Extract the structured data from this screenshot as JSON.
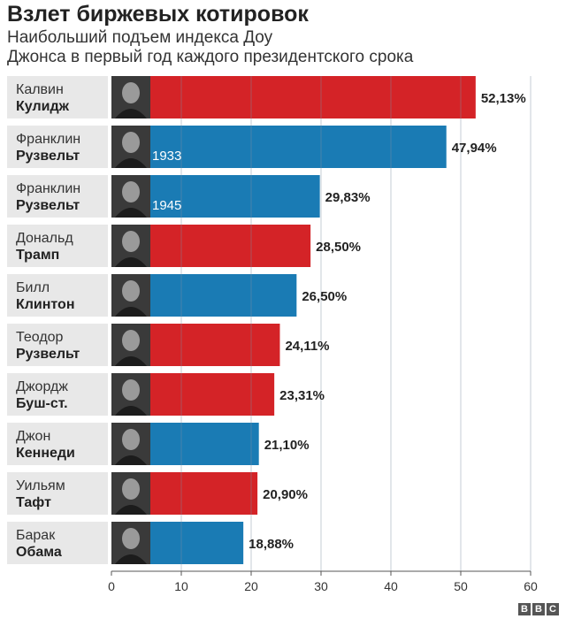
{
  "header": {
    "title": "Взлет биржевых котировок",
    "subtitle_line1": "Наибольший подъем индекса Доу",
    "subtitle_line2": "Джонса в первый год каждого президентского срока"
  },
  "colors": {
    "republican": "#d42327",
    "democrat": "#1a7bb4",
    "label_bg": "#e8e8e8",
    "gridline": "#7f8f9f"
  },
  "chart_data": {
    "type": "bar",
    "orientation": "horizontal",
    "xlim": [
      0,
      60
    ],
    "ticks": [
      0,
      10,
      20,
      30,
      40,
      50,
      60
    ],
    "grid": true,
    "bars": [
      {
        "first": "Калвин",
        "last": "Кулидж",
        "value": 52.13,
        "label": "52,13%",
        "party": "republican",
        "year": ""
      },
      {
        "first": "Франклин",
        "last": "Рузвельт",
        "value": 47.94,
        "label": "47,94%",
        "party": "democrat",
        "year": "1933"
      },
      {
        "first": "Франклин",
        "last": "Рузвельт",
        "value": 29.83,
        "label": "29,83%",
        "party": "democrat",
        "year": "1945"
      },
      {
        "first": "Дональд",
        "last": "Трамп",
        "value": 28.5,
        "label": "28,50%",
        "party": "republican",
        "year": ""
      },
      {
        "first": "Билл",
        "last": "Клинтон",
        "value": 26.5,
        "label": "26,50%",
        "party": "democrat",
        "year": ""
      },
      {
        "first": "Теодор",
        "last": "Рузвельт",
        "value": 24.11,
        "label": "24,11%",
        "party": "republican",
        "year": ""
      },
      {
        "first": "Джордж",
        "last": "Буш-ст.",
        "value": 23.31,
        "label": "23,31%",
        "party": "republican",
        "year": ""
      },
      {
        "first": "Джон",
        "last": "Кеннеди",
        "value": 21.1,
        "label": "21,10%",
        "party": "democrat",
        "year": ""
      },
      {
        "first": "Уильям",
        "last": "Тафт",
        "value": 20.9,
        "label": "20,90%",
        "party": "republican",
        "year": ""
      },
      {
        "first": "Барак",
        "last": "Обама",
        "value": 18.88,
        "label": "18,88%",
        "party": "democrat",
        "year": ""
      }
    ]
  },
  "footer": {
    "logo": [
      "B",
      "B",
      "C"
    ]
  }
}
